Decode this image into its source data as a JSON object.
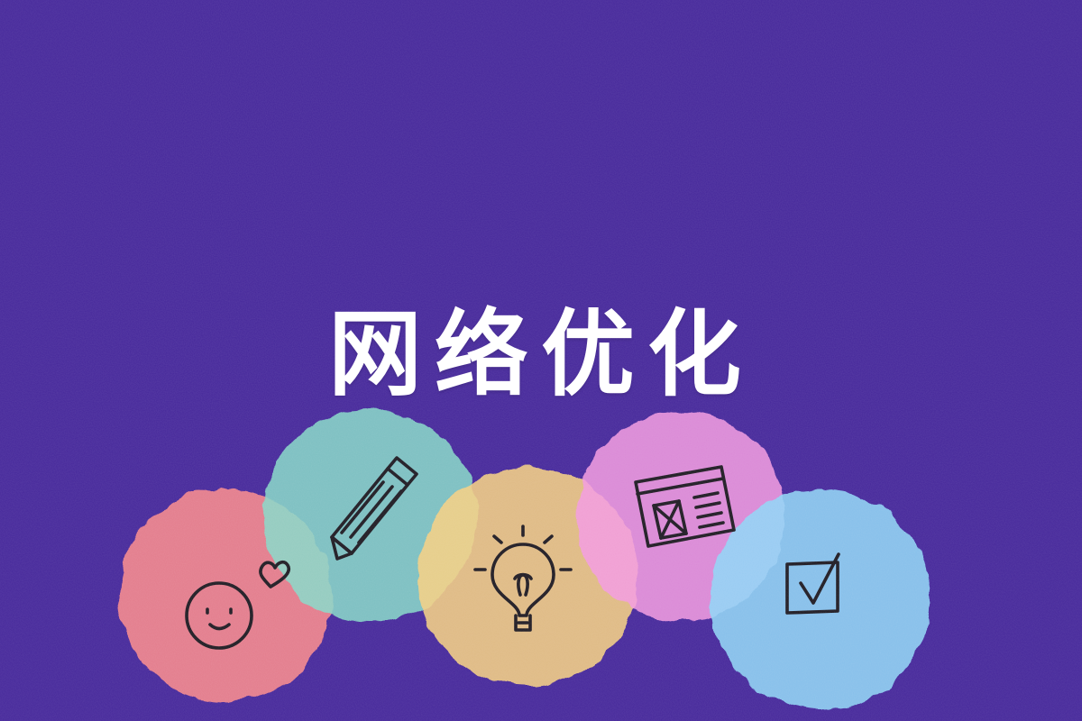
{
  "title": "网络优化",
  "colors": {
    "background": "#45279a",
    "title_text": "#ffffff",
    "circle_red": "#f0838c",
    "circle_teal": "#86d8c8",
    "circle_yellow": "#f5cf82",
    "circle_pink": "#f39ae0",
    "circle_blue": "#8fd5f6",
    "doodle_stroke": "#1e1a22"
  },
  "icons": [
    "smiley-face-icon",
    "heart-icon",
    "pencil-icon",
    "lightbulb-icon",
    "webpage-layout-icon",
    "checkbox-icon"
  ]
}
